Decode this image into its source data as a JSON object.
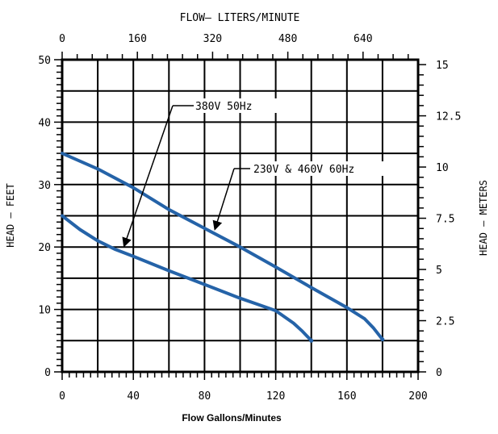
{
  "chart_data": {
    "type": "line",
    "title_top": "FLOW– LITERS/MINUTE",
    "xlabel": "Flow Gallons/Minutes",
    "ylabel_left": "HEAD – FEET",
    "ylabel_right": "HEAD – METERS",
    "x_range": [
      0,
      200
    ],
    "y_range": [
      0,
      50
    ],
    "x_ticks": [
      "0",
      "40",
      "80",
      "120",
      "160",
      "200"
    ],
    "y_ticks_left": [
      "0",
      "10",
      "20",
      "30",
      "40",
      "50"
    ],
    "x_top_ticks": [
      {
        "value": 0,
        "label": "0"
      },
      {
        "value": 160,
        "label": "160"
      },
      {
        "value": 320,
        "label": "320"
      },
      {
        "value": 480,
        "label": "480"
      },
      {
        "value": 640,
        "label": "640"
      }
    ],
    "y_right_ticks": [
      {
        "value": 0,
        "label": "0"
      },
      {
        "value": 2.5,
        "label": "2.5"
      },
      {
        "value": 5,
        "label": "5"
      },
      {
        "value": 7.5,
        "label": "7.5"
      },
      {
        "value": 10,
        "label": "10"
      },
      {
        "value": 12.5,
        "label": "12.5"
      },
      {
        "value": 15,
        "label": "15"
      }
    ],
    "grid": true,
    "series": [
      {
        "name": "380V 50Hz",
        "x": [
          0,
          10,
          20,
          30,
          40,
          60,
          80,
          100,
          110,
          120,
          130,
          135,
          140
        ],
        "y": [
          25,
          22.8,
          21,
          19.6,
          18.5,
          16.2,
          14,
          11.8,
          10.8,
          9.8,
          7.8,
          6.5,
          5
        ]
      },
      {
        "name": "230V & 460V 60Hz",
        "x": [
          0,
          20,
          40,
          60,
          80,
          100,
          120,
          140,
          160,
          170,
          175,
          180
        ],
        "y": [
          35,
          32.5,
          29.5,
          26,
          23,
          20,
          16.8,
          13.5,
          10.3,
          8.5,
          7,
          5.2
        ]
      }
    ],
    "annotations": [
      {
        "text": "380V  50Hz",
        "series": 0
      },
      {
        "text": "230V & 460V  60Hz",
        "series": 1
      }
    ]
  }
}
